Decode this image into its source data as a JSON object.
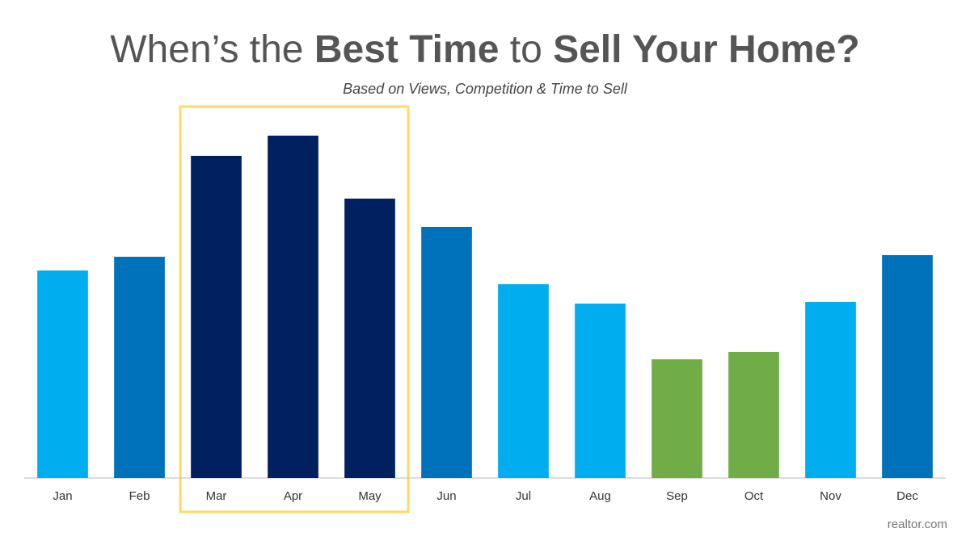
{
  "chart_data": {
    "type": "bar",
    "title": [
      {
        "text": "When’s the ",
        "bold": false
      },
      {
        "text": "Best Time",
        "bold": true
      },
      {
        "text": " to ",
        "bold": false
      },
      {
        "text": "Sell Your Home?",
        "bold": true
      }
    ],
    "subtitle": "Based on Views, Competition & Time to Sell",
    "categories": [
      "Jan",
      "Feb",
      "Mar",
      "Apr",
      "May",
      "Jun",
      "Jul",
      "Aug",
      "Sep",
      "Oct",
      "Nov",
      "Dec"
    ],
    "values": [
      257,
      274,
      399,
      424,
      346,
      311,
      240,
      216,
      147,
      156,
      218,
      276
    ],
    "colors": [
      "#00aeef",
      "#0072bc",
      "#002060",
      "#002060",
      "#002060",
      "#0072bc",
      "#00aeef",
      "#00aeef",
      "#70ad47",
      "#70ad47",
      "#00aeef",
      "#0072bc"
    ],
    "ylim": [
      0,
      450
    ],
    "source": "realtor.com"
  }
}
